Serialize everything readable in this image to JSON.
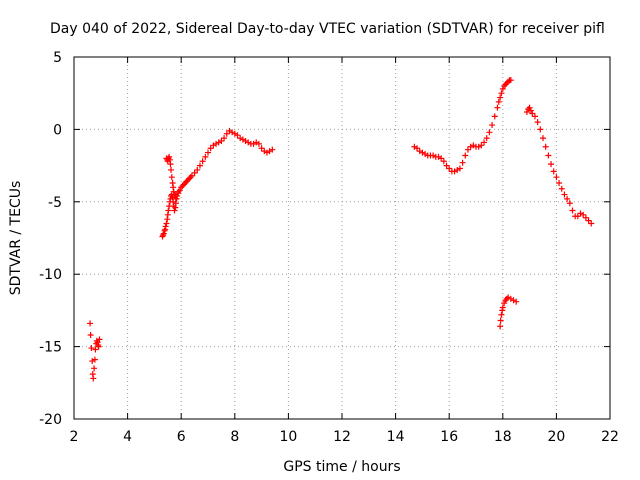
{
  "chart_data": {
    "type": "scatter",
    "title": "Day 040 of 2022, Sidereal Day-to-day VTEC variation (SDTVAR) for receiver pifl",
    "xlabel": "GPS time / hours",
    "ylabel": "SDTVAR / TECUs",
    "xlim": [
      2,
      22
    ],
    "ylim": [
      -20,
      5
    ],
    "x_ticks": [
      2,
      4,
      6,
      8,
      10,
      12,
      14,
      16,
      18,
      20,
      22
    ],
    "y_ticks": [
      5,
      0,
      -5,
      -10,
      -15,
      -20
    ],
    "grid": true,
    "marker": "+",
    "color": "#ff0000",
    "series": [
      {
        "name": "SDTVAR",
        "x": [
          2.6,
          2.62,
          2.65,
          2.68,
          2.7,
          2.72,
          2.75,
          2.78,
          2.8,
          2.83,
          2.85,
          2.88,
          2.9,
          2.92,
          2.95,
          5.3,
          5.32,
          5.35,
          5.38,
          5.4,
          5.42,
          5.45,
          5.48,
          5.5,
          5.52,
          5.55,
          5.58,
          5.6,
          5.62,
          5.65,
          5.68,
          5.7,
          5.72,
          5.75,
          5.78,
          5.8,
          5.83,
          5.85,
          5.88,
          5.9,
          5.95,
          6.0,
          6.05,
          6.1,
          6.15,
          6.2,
          6.25,
          6.3,
          6.35,
          6.4,
          6.5,
          6.6,
          6.7,
          6.8,
          6.9,
          7.0,
          7.1,
          7.2,
          7.3,
          7.4,
          7.5,
          7.6,
          7.7,
          7.8,
          7.9,
          8.0,
          8.1,
          8.2,
          8.3,
          8.4,
          8.5,
          8.6,
          8.7,
          8.8,
          8.9,
          9.0,
          9.1,
          9.2,
          9.3,
          9.4,
          5.45,
          5.48,
          5.5,
          5.52,
          5.55,
          5.58,
          5.6,
          5.62,
          5.65,
          5.68,
          5.7,
          5.72,
          5.75,
          5.78,
          5.8,
          14.7,
          14.8,
          14.9,
          15.0,
          15.1,
          15.2,
          15.3,
          15.4,
          15.5,
          15.6,
          15.7,
          15.8,
          15.9,
          16.0,
          16.1,
          16.2,
          16.3,
          16.4,
          16.5,
          16.6,
          16.7,
          16.8,
          16.9,
          17.0,
          17.1,
          17.2,
          17.3,
          17.4,
          17.5,
          17.6,
          17.7,
          17.8,
          17.85,
          17.9,
          17.95,
          18.0,
          18.05,
          18.1,
          18.15,
          18.2,
          18.25,
          18.3,
          17.9,
          17.92,
          17.95,
          17.98,
          18.0,
          18.05,
          18.1,
          18.15,
          18.2,
          18.3,
          18.4,
          18.5,
          18.9,
          18.95,
          19.0,
          19.05,
          19.1,
          19.2,
          19.3,
          19.4,
          19.5,
          19.6,
          19.7,
          19.8,
          19.9,
          20.0,
          20.1,
          20.2,
          20.3,
          20.4,
          20.5,
          20.6,
          20.7,
          20.8,
          20.9,
          21.0,
          21.1,
          21.2,
          21.3
        ],
        "y": [
          -13.4,
          -14.2,
          -15.1,
          -16.0,
          -16.9,
          -17.2,
          -16.5,
          -15.9,
          -15.2,
          -14.8,
          -14.6,
          -14.7,
          -14.9,
          -15.0,
          -14.5,
          -7.4,
          -7.3,
          -7.2,
          -7.0,
          -6.9,
          -6.7,
          -6.5,
          -6.2,
          -5.9,
          -5.6,
          -5.3,
          -5.0,
          -4.8,
          -4.6,
          -4.5,
          -4.7,
          -5.0,
          -5.3,
          -5.6,
          -5.4,
          -5.1,
          -4.8,
          -4.6,
          -4.4,
          -4.3,
          -4.2,
          -4.0,
          -3.9,
          -3.8,
          -3.7,
          -3.6,
          -3.5,
          -3.4,
          -3.3,
          -3.2,
          -3.0,
          -2.8,
          -2.5,
          -2.2,
          -1.9,
          -1.6,
          -1.3,
          -1.1,
          -1.0,
          -0.9,
          -0.8,
          -0.6,
          -0.3,
          -0.1,
          -0.2,
          -0.3,
          -0.4,
          -0.6,
          -0.7,
          -0.8,
          -0.9,
          -1.0,
          -1.0,
          -0.9,
          -1.0,
          -1.3,
          -1.5,
          -1.6,
          -1.5,
          -1.4,
          -2.0,
          -2.1,
          -2.2,
          -2.0,
          -1.9,
          -2.1,
          -2.4,
          -2.8,
          -3.3,
          -3.7,
          -4.0,
          -4.3,
          -4.5,
          -4.6,
          -4.8,
          -1.2,
          -1.3,
          -1.5,
          -1.6,
          -1.7,
          -1.8,
          -1.8,
          -1.8,
          -1.9,
          -1.9,
          -2.0,
          -2.2,
          -2.5,
          -2.7,
          -2.9,
          -2.9,
          -2.8,
          -2.7,
          -2.3,
          -1.8,
          -1.4,
          -1.2,
          -1.1,
          -1.2,
          -1.2,
          -1.1,
          -0.9,
          -0.6,
          -0.2,
          0.3,
          0.9,
          1.5,
          1.9,
          2.2,
          2.5,
          2.8,
          3.0,
          3.1,
          3.2,
          3.3,
          3.4,
          3.4,
          -13.6,
          -13.2,
          -12.8,
          -12.5,
          -12.3,
          -12.0,
          -11.8,
          -11.7,
          -11.6,
          -11.7,
          -11.8,
          -11.9,
          1.2,
          1.4,
          1.5,
          1.3,
          1.1,
          0.9,
          0.5,
          0.0,
          -0.6,
          -1.2,
          -1.8,
          -2.4,
          -2.9,
          -3.3,
          -3.7,
          -4.1,
          -4.5,
          -4.8,
          -5.1,
          -5.6,
          -6.0,
          -6.0,
          -5.8,
          -5.9,
          -6.1,
          -6.3,
          -6.5
        ]
      }
    ]
  }
}
